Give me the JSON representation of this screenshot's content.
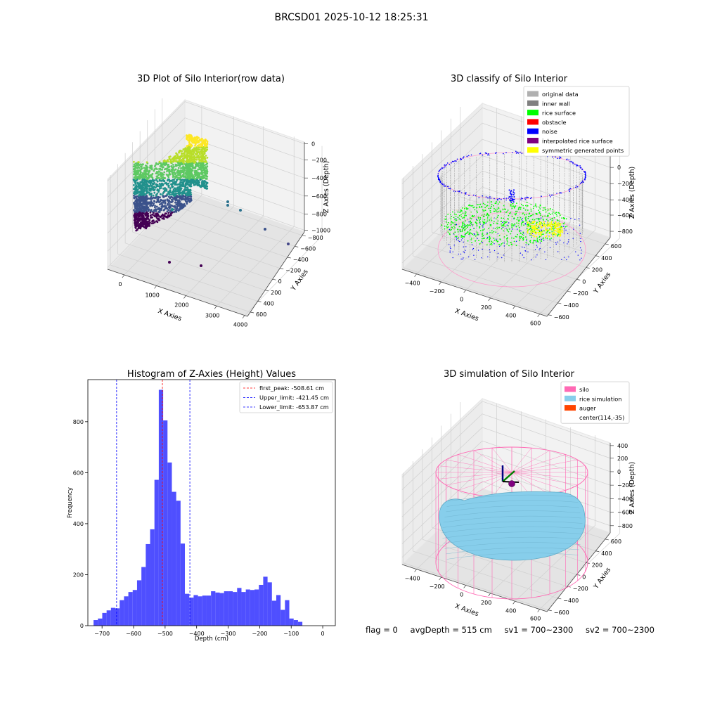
{
  "suptitle": "BRCSD01 2025-10-12 18:25:31",
  "status": {
    "flag": "flag = 0",
    "avg_depth": "avgDepth = 515 cm",
    "sv1": "sv1 = 700~2300",
    "sv2": "sv2 = 700~2300"
  },
  "colors": {
    "original": "#b0b0b0",
    "inner_wall": "#808080",
    "rice_surface": "#00ff00",
    "obstacle": "#ff0000",
    "noise": "#0000ff",
    "interpolated": "#800080",
    "symmetric": "#ffff00",
    "silo": "#ff69b4",
    "rice_sim": "#87ceeb",
    "auger": "#ff4500",
    "hist_bar": "#4f4fff"
  },
  "chart_data": [
    {
      "type": "scatter",
      "title": "3D Plot of Silo Interior(row data)",
      "xlabel": "X Axies",
      "ylabel": "Y Axies",
      "zlabel": "Z Axies (Depth)",
      "x_ticks": [
        "0",
        "1000",
        "2000",
        "3000",
        "4000"
      ],
      "y_ticks": [
        "600",
        "400",
        "200",
        "0",
        "−200",
        "−400",
        "−600",
        "−800"
      ],
      "z_ticks": [
        "0",
        "−200",
        "−400",
        "−600",
        "−800",
        "−1000"
      ],
      "outliers": [
        {
          "x": 1500,
          "y": 300,
          "z": -550
        },
        {
          "x": 1000,
          "y": 0,
          "z": -620
        },
        {
          "x": 2600,
          "y": 400,
          "z": -600
        },
        {
          "x": 2700,
          "y": 300,
          "z": -650
        },
        {
          "x": 3300,
          "y": 100,
          "z": -750
        },
        {
          "x": 3900,
          "y": -100,
          "z": -850
        },
        {
          "x": 1700,
          "y": -600,
          "z": -1000
        },
        {
          "x": 2200,
          "y": -700,
          "z": -1000
        }
      ]
    },
    {
      "type": "scatter",
      "title": "3D classify of Silo Interior",
      "xlabel": "X Axies",
      "ylabel": "Y Axies",
      "zlabel": "Z Axies (Depth)",
      "x_ticks": [
        "−400",
        "−200",
        "0",
        "200",
        "400",
        "600"
      ],
      "y_ticks": [
        "600",
        "400",
        "200",
        "0",
        "−200",
        "−400",
        "−600"
      ],
      "z_ticks": [
        "200",
        "0",
        "−200",
        "−400",
        "−600",
        "−800"
      ],
      "legend": [
        "original data",
        "inner wall",
        "rice surface",
        "obstacle",
        "noise",
        "interpolated rice surface",
        "symmetric generated points"
      ],
      "legend_colors": [
        "#b0b0b0",
        "#808080",
        "#00ff00",
        "#ff0000",
        "#0000ff",
        "#800080",
        "#ffff00"
      ],
      "legend_position": "top-right"
    },
    {
      "type": "bar",
      "title": "Histogram of Z-Axies (Height) Values",
      "xlabel": "Depth (cm)",
      "ylabel": "Frequency",
      "xlim": [
        -745,
        40
      ],
      "ylim": [
        0,
        965
      ],
      "x_ticks": [
        -700,
        -600,
        -500,
        -400,
        -300,
        -200,
        -100,
        0
      ],
      "x_tick_labels": [
        "−700",
        "−600",
        "−500",
        "−400",
        "−300",
        "−200",
        "−100",
        "0"
      ],
      "y_ticks": [
        0,
        200,
        400,
        600,
        800
      ],
      "bins_start": -727,
      "bin_width": 13.8,
      "values": [
        22,
        28,
        50,
        60,
        70,
        68,
        100,
        115,
        132,
        140,
        178,
        230,
        320,
        378,
        572,
        925,
        805,
        640,
        525,
        490,
        322,
        125,
        110,
        120,
        115,
        118,
        118,
        135,
        130,
        128,
        135,
        135,
        132,
        148,
        132,
        142,
        140,
        142,
        160,
        192,
        170,
        98,
        120,
        62,
        100,
        28,
        22,
        15
      ],
      "vlines": [
        {
          "x": -508.61,
          "label": "first_peak: -508.61 cm",
          "color": "#ff0000"
        },
        {
          "x": -421.45,
          "label": "Upper_limit: -421.45 cm",
          "color": "#0000ff"
        },
        {
          "x": -653.87,
          "label": "Lower_limit: -653.87 cm",
          "color": "#0000ff"
        }
      ],
      "legend_position": "top-right"
    },
    {
      "type": "scatter",
      "title": "3D simulation of Silo Interior",
      "xlabel": "X Axies",
      "ylabel": "Y Axies",
      "zlabel": "Z Axies (Depth)",
      "x_ticks": [
        "−400",
        "−200",
        "0",
        "200",
        "400",
        "600"
      ],
      "y_ticks": [
        "600",
        "400",
        "200",
        "0",
        "−200",
        "−400",
        "−600"
      ],
      "z_ticks": [
        "400",
        "200",
        "0",
        "−200",
        "−400",
        "−600",
        "−800"
      ],
      "legend": [
        "silo",
        "rice simulation",
        "auger",
        "center(114,-35)"
      ],
      "legend_colors": [
        "#ff69b4",
        "#87ceeb",
        "#ff4500",
        ""
      ],
      "legend_position": "top-right"
    }
  ]
}
